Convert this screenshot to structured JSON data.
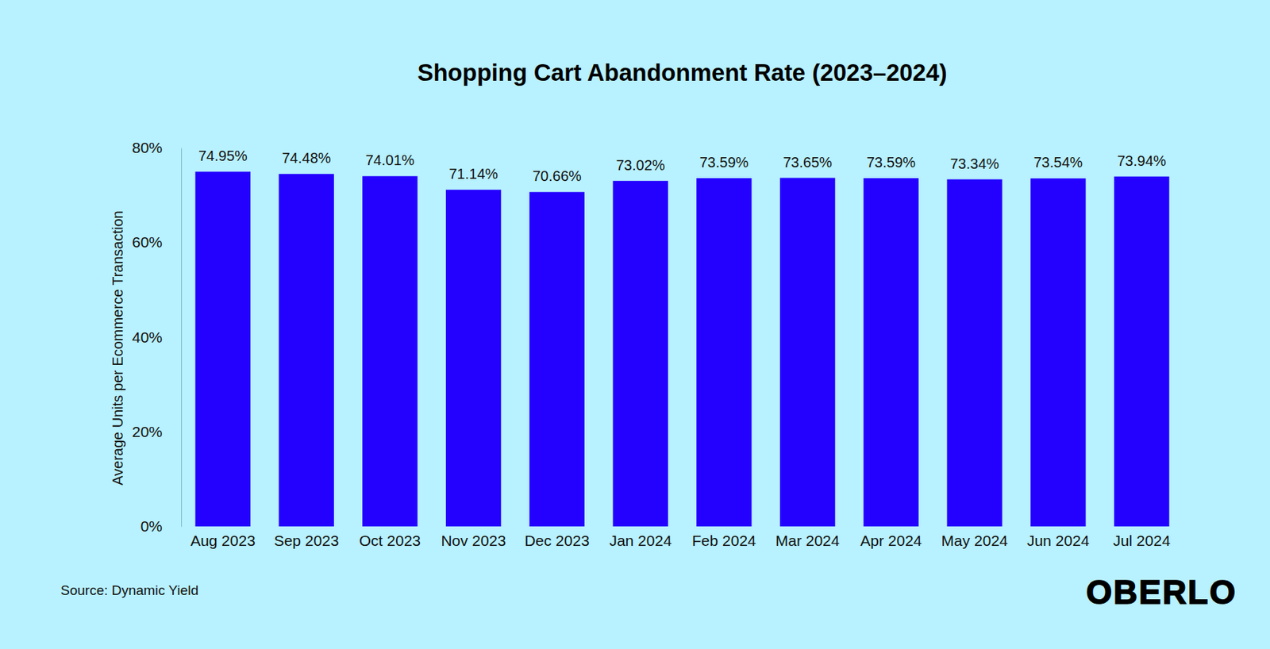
{
  "chart_data": {
    "type": "bar",
    "title": "Shopping Cart Abandonment Rate (2023–2024)",
    "y_label": "Average Units per Ecommerce Transaction",
    "source": "Source: Dynamic Yield",
    "logo": "OBERLO",
    "categories": [
      "Aug 2023",
      "Sep 2023",
      "Oct 2023",
      "Nov 2023",
      "Dec 2023",
      "Jan 2024",
      "Feb 2024",
      "Mar 2024",
      "Apr 2024",
      "May 2024",
      "Jun 2024",
      "Jul 2024"
    ],
    "values": [
      74.95,
      74.48,
      74.01,
      71.14,
      70.66,
      73.02,
      73.59,
      73.65,
      73.59,
      73.34,
      73.54,
      73.94
    ],
    "value_labels": [
      "74.95%",
      "74.48%",
      "74.01%",
      "71.14%",
      "70.66%",
      "73.02%",
      "73.59%",
      "73.65%",
      "73.59%",
      "73.34%",
      "73.54%",
      "73.94%"
    ],
    "color": "#2400ff",
    "ylim": [
      0,
      80
    ],
    "yticks": [
      {
        "value": 0,
        "label": "0%"
      },
      {
        "value": 20,
        "label": "20%"
      },
      {
        "value": 40,
        "label": "40%"
      },
      {
        "value": 60,
        "label": "60%"
      },
      {
        "value": 80,
        "label": "80%"
      }
    ],
    "grid": false,
    "data_labels": true
  }
}
